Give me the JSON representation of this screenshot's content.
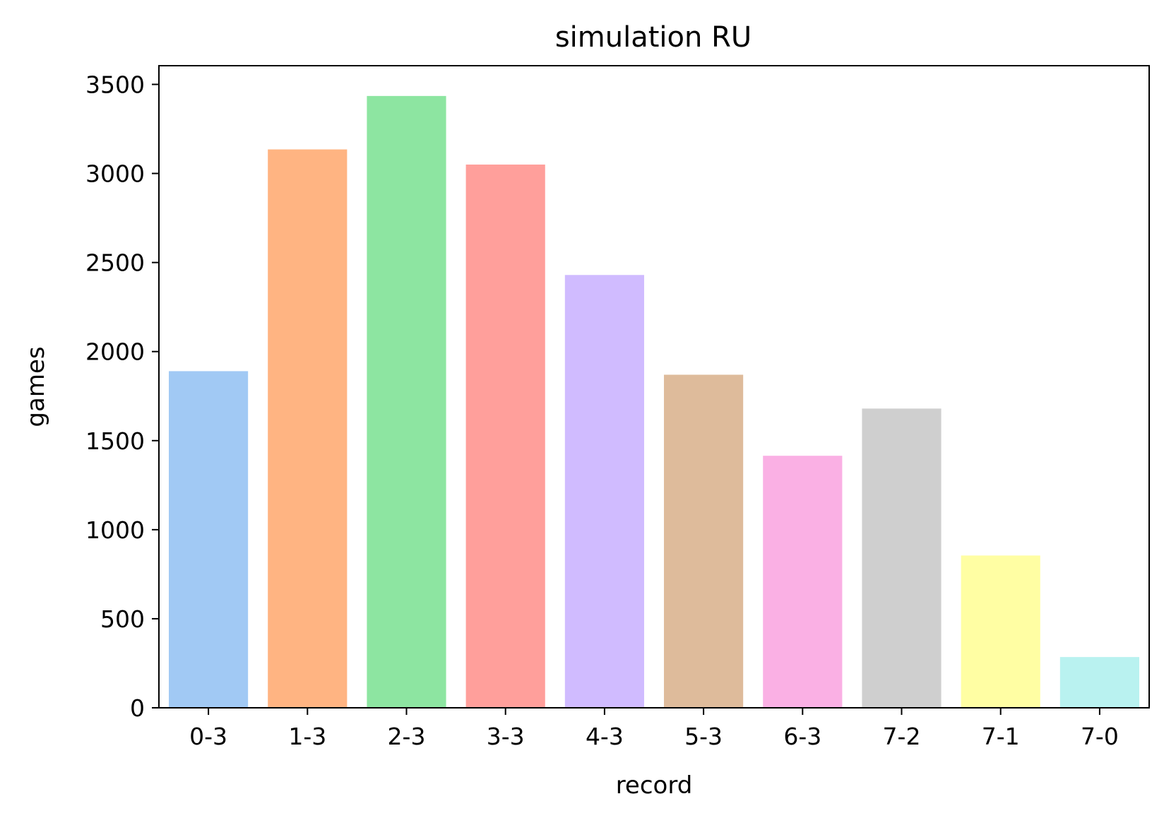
{
  "chart_data": {
    "type": "bar",
    "title": "simulation RU",
    "xlabel": "record",
    "ylabel": "games",
    "categories": [
      "0-3",
      "1-3",
      "2-3",
      "3-3",
      "4-3",
      "5-3",
      "6-3",
      "7-2",
      "7-1",
      "7-0"
    ],
    "values": [
      1890,
      3135,
      3435,
      3050,
      2430,
      1870,
      1415,
      1680,
      855,
      285
    ],
    "colors": [
      "#a1c9f4",
      "#ffb482",
      "#8de5a1",
      "#ff9f9b",
      "#d0bbff",
      "#debb9b",
      "#fab0e4",
      "#cfcfcf",
      "#fffea3",
      "#b9f2f0"
    ],
    "ylim": [
      0,
      3605
    ],
    "yticks": [
      0,
      500,
      1000,
      1500,
      2000,
      2500,
      3000,
      3500
    ],
    "grid": false,
    "legend": "none"
  }
}
